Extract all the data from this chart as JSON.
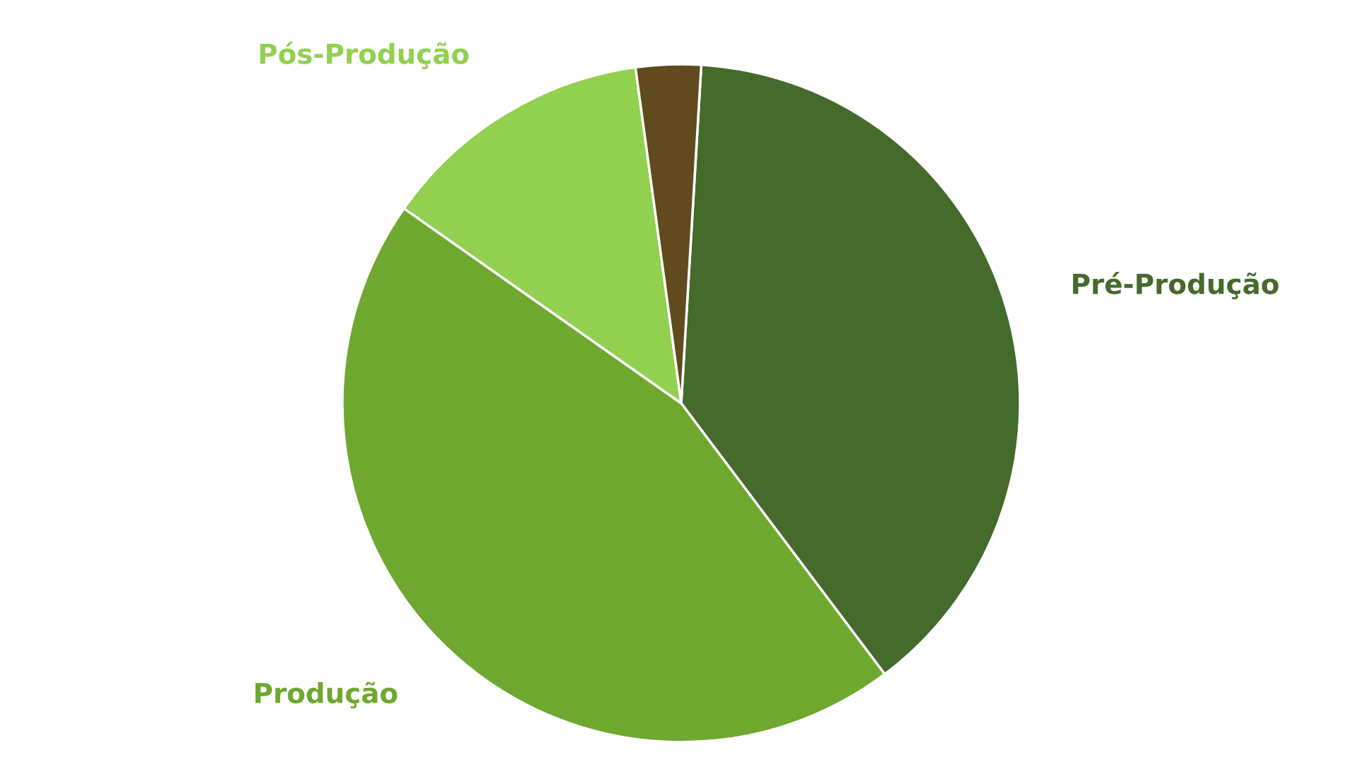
{
  "chart_data": {
    "type": "pie",
    "categories": [
      "Pré-Produção",
      "Produção",
      "Pós-Produção",
      null
    ],
    "values": [
      38.8,
      45.0,
      13.1,
      3.1
    ],
    "colors": [
      "#446a2c",
      "#6fa82f",
      "#92d050",
      "#604a1e"
    ]
  }
}
